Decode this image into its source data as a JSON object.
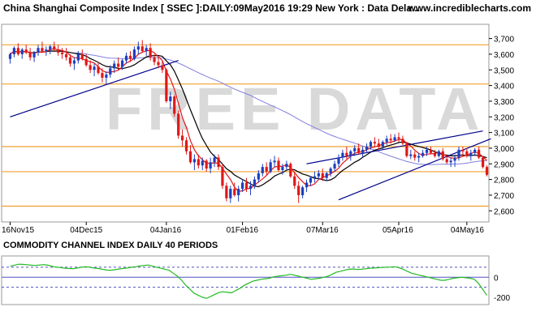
{
  "header": {
    "title": "China Shanghai Composite Index [ SSEC ]:DAILY:09May2016 19:29 New York : Data Dela...",
    "site": "www.incrediblecharts.com"
  },
  "watermark": "FREE DATA",
  "cci_title": "COMMODITY CHANNEL INDEX DAILY 40 PERIODS",
  "colors": {
    "up": "#1f3fbf",
    "down": "#e01818",
    "ma_short": "#e01818",
    "ma_mid": "#000000",
    "ma_long": "#8080e0",
    "horizontal_lines": "#f0a030",
    "trendline": "#00008b",
    "cci_line": "#22bb22",
    "cci_levels": "#5050c0",
    "header_bg": "#ffffff",
    "cci_title_bg": "#ffffff"
  },
  "chart_data": [
    {
      "type": "candlestick",
      "title": "China Shanghai Composite Index [ SSEC ]:DAILY:09May2016 19:29 New York : Data Dela...",
      "x_ticks": [
        "16Nov15",
        "04Dec15",
        "04Jan16",
        "01Feb16",
        "07Mar16",
        "05Apr16",
        "04May16"
      ],
      "y_ticks": [
        "3,700",
        "3,600",
        "3,500",
        "3,400",
        "3,300",
        "3,200",
        "3,100",
        "3,000",
        "2,900",
        "2,800",
        "2,700",
        "2,600"
      ],
      "ylim": [
        2560,
        3760
      ],
      "horizontal_levels": [
        3660,
        3410,
        3010,
        2850,
        2630
      ],
      "trendlines": [
        {
          "from": [
            0,
            3200
          ],
          "to": [
            42,
            3560
          ]
        },
        {
          "from": [
            74,
            2900
          ],
          "to": [
            118,
            3110
          ]
        },
        {
          "from": [
            82,
            2670
          ],
          "to": [
            120,
            3060
          ]
        }
      ],
      "candles": [
        [
          3570,
          3610,
          3540,
          3600
        ],
        [
          3600,
          3650,
          3580,
          3640
        ],
        [
          3640,
          3670,
          3590,
          3600
        ],
        [
          3600,
          3640,
          3570,
          3630
        ],
        [
          3630,
          3660,
          3600,
          3610
        ],
        [
          3610,
          3640,
          3560,
          3580
        ],
        [
          3580,
          3620,
          3550,
          3610
        ],
        [
          3610,
          3660,
          3590,
          3640
        ],
        [
          3640,
          3680,
          3610,
          3620
        ],
        [
          3620,
          3650,
          3590,
          3630
        ],
        [
          3630,
          3660,
          3600,
          3650
        ],
        [
          3650,
          3680,
          3620,
          3630
        ],
        [
          3630,
          3660,
          3590,
          3610
        ],
        [
          3610,
          3640,
          3570,
          3600
        ],
        [
          3600,
          3640,
          3560,
          3580
        ],
        [
          3580,
          3600,
          3520,
          3540
        ],
        [
          3540,
          3580,
          3500,
          3560
        ],
        [
          3560,
          3620,
          3540,
          3600
        ],
        [
          3600,
          3630,
          3560,
          3570
        ],
        [
          3570,
          3600,
          3520,
          3530
        ],
        [
          3530,
          3560,
          3480,
          3500
        ],
        [
          3500,
          3540,
          3460,
          3520
        ],
        [
          3520,
          3550,
          3470,
          3480
        ],
        [
          3480,
          3510,
          3420,
          3450
        ],
        [
          3450,
          3490,
          3410,
          3470
        ],
        [
          3470,
          3530,
          3450,
          3510
        ],
        [
          3510,
          3560,
          3480,
          3540
        ],
        [
          3540,
          3580,
          3500,
          3520
        ],
        [
          3520,
          3570,
          3500,
          3560
        ],
        [
          3560,
          3610,
          3540,
          3590
        ],
        [
          3590,
          3620,
          3550,
          3570
        ],
        [
          3570,
          3650,
          3560,
          3630
        ],
        [
          3630,
          3680,
          3600,
          3650
        ],
        [
          3650,
          3690,
          3610,
          3620
        ],
        [
          3620,
          3660,
          3590,
          3640
        ],
        [
          3640,
          3670,
          3560,
          3580
        ],
        [
          3580,
          3600,
          3530,
          3550
        ],
        [
          3550,
          3580,
          3510,
          3530
        ],
        [
          3530,
          3560,
          3480,
          3500
        ],
        [
          3500,
          3510,
          3290,
          3300
        ],
        [
          3300,
          3360,
          3250,
          3330
        ],
        [
          3330,
          3340,
          3200,
          3220
        ],
        [
          3220,
          3240,
          3060,
          3080
        ],
        [
          3080,
          3120,
          3010,
          3050
        ],
        [
          3050,
          3070,
          2960,
          2980
        ],
        [
          2980,
          3020,
          2900,
          2910
        ],
        [
          2910,
          2960,
          2860,
          2930
        ],
        [
          2930,
          2960,
          2870,
          2890
        ],
        [
          2890,
          2940,
          2860,
          2920
        ],
        [
          2920,
          2930,
          2850,
          2870
        ],
        [
          2870,
          2940,
          2840,
          2910
        ],
        [
          2910,
          2960,
          2880,
          2940
        ],
        [
          2940,
          2960,
          2860,
          2880
        ],
        [
          2880,
          2900,
          2740,
          2760
        ],
        [
          2760,
          2780,
          2660,
          2680
        ],
        [
          2680,
          2760,
          2650,
          2740
        ],
        [
          2740,
          2780,
          2690,
          2700
        ],
        [
          2700,
          2760,
          2660,
          2740
        ],
        [
          2740,
          2800,
          2720,
          2780
        ],
        [
          2780,
          2810,
          2720,
          2740
        ],
        [
          2740,
          2790,
          2700,
          2760
        ],
        [
          2760,
          2820,
          2740,
          2800
        ],
        [
          2800,
          2860,
          2780,
          2840
        ],
        [
          2840,
          2900,
          2820,
          2880
        ],
        [
          2880,
          2910,
          2830,
          2850
        ],
        [
          2850,
          2930,
          2840,
          2910
        ],
        [
          2910,
          2950,
          2880,
          2920
        ],
        [
          2920,
          2940,
          2850,
          2860
        ],
        [
          2860,
          2900,
          2830,
          2880
        ],
        [
          2880,
          2920,
          2860,
          2900
        ],
        [
          2900,
          2910,
          2810,
          2820
        ],
        [
          2820,
          2850,
          2740,
          2760
        ],
        [
          2760,
          2790,
          2650,
          2700
        ],
        [
          2700,
          2760,
          2680,
          2750
        ],
        [
          2750,
          2800,
          2720,
          2780
        ],
        [
          2780,
          2820,
          2760,
          2810
        ],
        [
          2810,
          2850,
          2780,
          2820
        ],
        [
          2820,
          2860,
          2800,
          2840
        ],
        [
          2840,
          2870,
          2790,
          2810
        ],
        [
          2810,
          2850,
          2790,
          2840
        ],
        [
          2840,
          2880,
          2820,
          2870
        ],
        [
          2870,
          2920,
          2850,
          2900
        ],
        [
          2900,
          2960,
          2880,
          2940
        ],
        [
          2940,
          2990,
          2920,
          2970
        ],
        [
          2970,
          3010,
          2930,
          2950
        ],
        [
          2950,
          2990,
          2920,
          2980
        ],
        [
          2980,
          3020,
          2950,
          3000
        ],
        [
          3000,
          3030,
          2960,
          2970
        ],
        [
          2970,
          3010,
          2940,
          2990
        ],
        [
          2990,
          3030,
          2970,
          3010
        ],
        [
          3010,
          3050,
          2990,
          3040
        ],
        [
          3040,
          3070,
          3010,
          3030
        ],
        [
          3030,
          3060,
          2990,
          3010
        ],
        [
          3010,
          3050,
          2990,
          3040
        ],
        [
          3040,
          3080,
          3020,
          3060
        ],
        [
          3060,
          3090,
          3030,
          3050
        ],
        [
          3050,
          3090,
          3040,
          3070
        ],
        [
          3070,
          3100,
          3040,
          3060
        ],
        [
          3060,
          3080,
          3020,
          3030
        ],
        [
          3030,
          3040,
          2940,
          2950
        ],
        [
          2950,
          2990,
          2930,
          2960
        ],
        [
          2960,
          2980,
          2920,
          2940
        ],
        [
          2940,
          2970,
          2910,
          2950
        ],
        [
          2950,
          2990,
          2940,
          2970
        ],
        [
          2970,
          3010,
          2950,
          2990
        ],
        [
          2990,
          3010,
          2960,
          2970
        ],
        [
          2970,
          2990,
          2940,
          2950
        ],
        [
          2950,
          2990,
          2940,
          2980
        ],
        [
          2980,
          3000,
          2920,
          2930
        ],
        [
          2930,
          2960,
          2900,
          2910
        ],
        [
          2910,
          2940,
          2880,
          2920
        ],
        [
          2920,
          2960,
          2880,
          2940
        ],
        [
          2940,
          3010,
          2920,
          2990
        ],
        [
          2990,
          3010,
          2950,
          2980
        ],
        [
          2980,
          3000,
          2940,
          2950
        ],
        [
          2950,
          2990,
          2920,
          2970
        ],
        [
          2970,
          3000,
          2950,
          2990
        ],
        [
          2990,
          3010,
          2930,
          2940
        ],
        [
          2940,
          2950,
          2870,
          2880
        ],
        [
          2880,
          2890,
          2820,
          2830
        ]
      ]
    },
    {
      "type": "line",
      "title": "COMMODITY CHANNEL INDEX DAILY 40 PERIODS",
      "y_ticks": [
        "0",
        "-200"
      ],
      "ylim": [
        -240,
        180
      ],
      "levels": [
        100,
        0,
        -100
      ],
      "values": [
        110,
        120,
        130,
        128,
        125,
        120,
        118,
        122,
        126,
        120,
        110,
        100,
        98,
        90,
        88,
        85,
        92,
        100,
        105,
        100,
        92,
        88,
        80,
        72,
        70,
        75,
        82,
        88,
        92,
        100,
        105,
        112,
        118,
        122,
        112,
        100,
        90,
        80,
        70,
        40,
        10,
        -30,
        -80,
        -120,
        -160,
        -180,
        -200,
        -210,
        -190,
        -170,
        -150,
        -145,
        -150,
        -155,
        -130,
        -110,
        -80,
        -60,
        -40,
        -30,
        -20,
        -15,
        -10,
        5,
        10,
        15,
        20,
        30,
        20,
        10,
        0,
        -10,
        -20,
        -15,
        -10,
        0,
        10,
        30,
        50,
        60,
        70,
        80,
        82,
        78,
        80,
        85,
        90,
        92,
        95,
        98,
        100,
        102,
        105,
        95,
        80,
        60,
        40,
        30,
        20,
        10,
        0,
        -10,
        -20,
        -30,
        -30,
        -20,
        -10,
        -5,
        0,
        -5,
        -10,
        -20,
        -60,
        -120,
        -180
      ]
    }
  ]
}
